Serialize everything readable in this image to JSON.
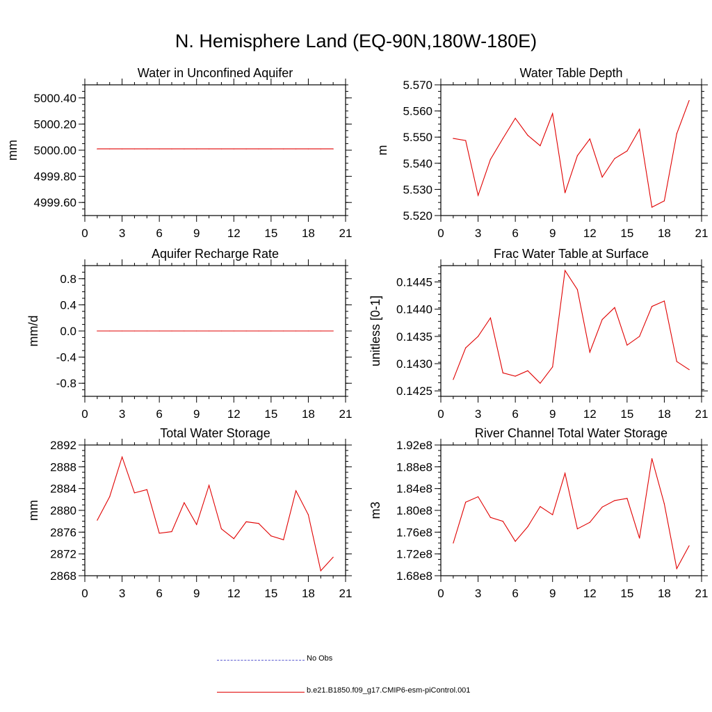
{
  "page": {
    "title": "N. Hemisphere Land (EQ-90N,180W-180E)"
  },
  "legend": {
    "entries": [
      {
        "label": "No Obs",
        "color": "#5a5ad0",
        "style": "dashed"
      },
      {
        "label": "b.e21.B1850.f09_g17.CMIP6-esm-piControl.001",
        "color": "#e00000",
        "style": "solid"
      }
    ]
  },
  "chart_data": [
    {
      "type": "line",
      "title": "Water in Unconfined Aquifer",
      "ylabel": "mm",
      "xlim": [
        0,
        21
      ],
      "xticks": [
        0,
        3,
        6,
        9,
        12,
        15,
        18,
        21
      ],
      "ylim": [
        4999.5,
        5000.5
      ],
      "yticks": [
        4999.6,
        4999.8,
        5000.0,
        5000.2,
        5000.4
      ],
      "ytick_labels": [
        "4999.60",
        "4999.80",
        "5000.00",
        "5000.20",
        "5000.40"
      ],
      "series": [
        {
          "color": "#e00000",
          "x": [
            1,
            2,
            3,
            4,
            5,
            6,
            7,
            8,
            9,
            10,
            11,
            12,
            13,
            14,
            15,
            16,
            17,
            18,
            19,
            20
          ],
          "y": [
            5000.01,
            5000.01,
            5000.01,
            5000.01,
            5000.01,
            5000.01,
            5000.01,
            5000.01,
            5000.01,
            5000.01,
            5000.01,
            5000.01,
            5000.01,
            5000.01,
            5000.01,
            5000.01,
            5000.01,
            5000.01,
            5000.01,
            5000.01
          ]
        }
      ]
    },
    {
      "type": "line",
      "title": "Water Table Depth",
      "ylabel": "m",
      "xlim": [
        0,
        21
      ],
      "xticks": [
        0,
        3,
        6,
        9,
        12,
        15,
        18,
        21
      ],
      "ylim": [
        5.52,
        5.57
      ],
      "yticks": [
        5.52,
        5.53,
        5.54,
        5.55,
        5.56,
        5.57
      ],
      "ytick_labels": [
        "5.520",
        "5.530",
        "5.540",
        "5.550",
        "5.560",
        "5.570"
      ],
      "series": [
        {
          "color": "#e00000",
          "x": [
            1,
            2,
            3,
            4,
            5,
            6,
            7,
            8,
            9,
            10,
            11,
            12,
            13,
            14,
            15,
            16,
            17,
            18,
            19,
            20
          ],
          "y": [
            5.5495,
            5.5487,
            5.5277,
            5.5415,
            5.5495,
            5.5572,
            5.5507,
            5.5467,
            5.559,
            5.5287,
            5.5429,
            5.5493,
            5.5347,
            5.5418,
            5.5447,
            5.553,
            5.5232,
            5.5256,
            5.5513,
            5.564
          ]
        }
      ]
    },
    {
      "type": "line",
      "title": "Aquifer Recharge Rate",
      "ylabel": "mm/d",
      "xlim": [
        0,
        21
      ],
      "xticks": [
        0,
        3,
        6,
        9,
        12,
        15,
        18,
        21
      ],
      "ylim": [
        -1.0,
        1.0
      ],
      "yticks": [
        -0.8,
        -0.4,
        0.0,
        0.4,
        0.8
      ],
      "ytick_labels": [
        "-0.8",
        "-0.4",
        "0.0",
        "0.4",
        "0.8"
      ],
      "series": [
        {
          "color": "#e00000",
          "x": [
            1,
            2,
            3,
            4,
            5,
            6,
            7,
            8,
            9,
            10,
            11,
            12,
            13,
            14,
            15,
            16,
            17,
            18,
            19,
            20
          ],
          "y": [
            0,
            0,
            0,
            0,
            0,
            0,
            0,
            0,
            0,
            0,
            0,
            0,
            0,
            0,
            0,
            0,
            0,
            0,
            0,
            0
          ]
        }
      ]
    },
    {
      "type": "line",
      "title": "Frac Water Table at Surface",
      "ylabel": "unitless [0-1]",
      "xlim": [
        0,
        21
      ],
      "xticks": [
        0,
        3,
        6,
        9,
        12,
        15,
        18,
        21
      ],
      "ylim": [
        0.1424,
        0.1448
      ],
      "yticks": [
        0.1425,
        0.143,
        0.1435,
        0.144,
        0.1445
      ],
      "ytick_labels": [
        "0.1425",
        "0.1430",
        "0.1435",
        "0.1440",
        "0.1445"
      ],
      "series": [
        {
          "color": "#e00000",
          "x": [
            1,
            2,
            3,
            4,
            5,
            6,
            7,
            8,
            9,
            10,
            11,
            12,
            13,
            14,
            15,
            16,
            17,
            18,
            19,
            20
          ],
          "y": [
            0.14271,
            0.14329,
            0.1435,
            0.14384,
            0.14283,
            0.14277,
            0.14287,
            0.14264,
            0.14294,
            0.14471,
            0.14436,
            0.14321,
            0.14381,
            0.14403,
            0.14334,
            0.1435,
            0.14405,
            0.14415,
            0.14304,
            0.14289
          ]
        }
      ]
    },
    {
      "type": "line",
      "title": "Total Water Storage",
      "ylabel": "mm",
      "xlim": [
        0,
        21
      ],
      "xticks": [
        0,
        3,
        6,
        9,
        12,
        15,
        18,
        21
      ],
      "ylim": [
        2868,
        2892
      ],
      "yticks": [
        2868,
        2872,
        2876,
        2880,
        2884,
        2888,
        2892
      ],
      "ytick_labels": [
        "2868",
        "2872",
        "2876",
        "2880",
        "2884",
        "2888",
        "2892"
      ],
      "series": [
        {
          "color": "#e00000",
          "x": [
            1,
            2,
            3,
            4,
            5,
            6,
            7,
            8,
            9,
            10,
            11,
            12,
            13,
            14,
            15,
            16,
            17,
            18,
            19,
            20
          ],
          "y": [
            2878.2,
            2882.5,
            2889.8,
            2883.2,
            2883.8,
            2875.8,
            2876.1,
            2881.4,
            2877.4,
            2884.6,
            2876.6,
            2874.8,
            2877.9,
            2877.6,
            2875.3,
            2874.6,
            2883.6,
            2879.2,
            2868.9,
            2871.4
          ]
        }
      ]
    },
    {
      "type": "line",
      "title": "River Channel Total Water Storage",
      "ylabel": "m3",
      "xlim": [
        0,
        21
      ],
      "xticks": [
        0,
        3,
        6,
        9,
        12,
        15,
        18,
        21
      ],
      "ylim": [
        168000000.0,
        192000000.0
      ],
      "yticks": [
        168000000.0,
        172000000.0,
        176000000.0,
        180000000.0,
        184000000.0,
        188000000.0,
        192000000.0
      ],
      "ytick_labels": [
        "1.68e8",
        "1.72e8",
        "1.76e8",
        "1.80e8",
        "1.84e8",
        "1.88e8",
        "1.92e8"
      ],
      "series": [
        {
          "color": "#e00000",
          "x": [
            1,
            2,
            3,
            4,
            5,
            6,
            7,
            8,
            9,
            10,
            11,
            12,
            13,
            14,
            15,
            16,
            17,
            18,
            19,
            20
          ],
          "y": [
            174000000.0,
            181500000.0,
            182500000.0,
            178700000.0,
            178000000.0,
            174300000.0,
            177000000.0,
            180700000.0,
            179200000.0,
            186800000.0,
            176600000.0,
            177800000.0,
            180600000.0,
            181800000.0,
            182200000.0,
            174900000.0,
            189500000.0,
            181200000.0,
            169300000.0,
            173500000.0
          ]
        }
      ]
    }
  ]
}
